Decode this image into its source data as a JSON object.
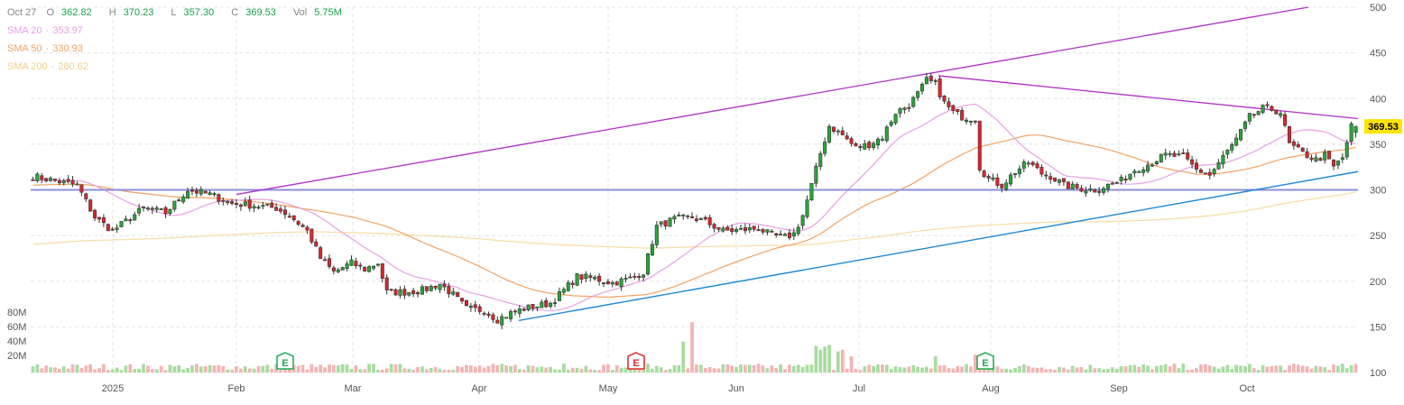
{
  "legend": {
    "date": "Oct 27",
    "open_label": "O",
    "open": "362.82",
    "high_label": "H",
    "high": "370.23",
    "low_label": "L",
    "low": "357.30",
    "close_label": "C",
    "close": "369.53",
    "volume_label": "Vol",
    "volume": "5.75M",
    "sma20_label": "SMA 20",
    "sma20": "353.97",
    "sma50_label": "SMA 50",
    "sma50": "330.93",
    "sma200_label": "SMA 200",
    "sma200": "280.62"
  },
  "colors": {
    "up": "#27a737",
    "down": "#d9272e",
    "up_volume": "#a8dca0",
    "down_volume": "#f4b4b4",
    "sma20": "#e9a0e3",
    "sma50": "#f4a261",
    "sma200": "#f8dca4",
    "trend_purple": "#b030c8",
    "trend_blue": "#1e88d6",
    "horizontal_line": "#8c8fd8",
    "price_tag_bg": "#ffe400",
    "earnings_green": "#1aa84b",
    "earnings_red": "#d9272e",
    "grid": "#e4e4e4"
  },
  "chart_data": {
    "type": "candlestick",
    "ylim": [
      100,
      500
    ],
    "y_ticks": [
      "500",
      "450",
      "400",
      "350",
      "300",
      "250",
      "200",
      "150",
      "100"
    ],
    "volume_ticks": [
      "80M",
      "60M",
      "40M",
      "20M"
    ],
    "x_ticks": [
      "2025",
      "Feb",
      "Mar",
      "Apr",
      "May",
      "Jun",
      "Jul",
      "Aug",
      "Sep",
      "Oct"
    ],
    "last_price": "369.53",
    "earnings_markers": [
      {
        "label": "E",
        "color": "green"
      },
      {
        "label": "E",
        "color": "red"
      },
      {
        "label": "E",
        "color": "green"
      }
    ],
    "horizontal_level": 300,
    "series": [
      {
        "name": "SMA 20",
        "last": 353.97
      },
      {
        "name": "SMA 50",
        "last": 330.93
      },
      {
        "name": "SMA 200",
        "last": 280.62
      }
    ],
    "anchors": [
      [
        0,
        315
      ],
      [
        10,
        305
      ],
      [
        14,
        270
      ],
      [
        18,
        255
      ],
      [
        25,
        280
      ],
      [
        30,
        275
      ],
      [
        35,
        300
      ],
      [
        40,
        295
      ],
      [
        45,
        285
      ],
      [
        50,
        283
      ],
      [
        55,
        280
      ],
      [
        58,
        272
      ],
      [
        62,
        255
      ],
      [
        65,
        225
      ],
      [
        68,
        210
      ],
      [
        72,
        220
      ],
      [
        75,
        213
      ],
      [
        78,
        220
      ],
      [
        80,
        188
      ],
      [
        84,
        188
      ],
      [
        88,
        190
      ],
      [
        92,
        197
      ],
      [
        95,
        185
      ],
      [
        98,
        170
      ],
      [
        102,
        168
      ],
      [
        105,
        158
      ],
      [
        108,
        165
      ],
      [
        111,
        170
      ],
      [
        114,
        173
      ],
      [
        117,
        176
      ],
      [
        120,
        190
      ],
      [
        123,
        205
      ],
      [
        127,
        203
      ],
      [
        131,
        198
      ],
      [
        135,
        203
      ],
      [
        138,
        210
      ],
      [
        141,
        260
      ],
      [
        145,
        268
      ],
      [
        149,
        270
      ],
      [
        152,
        265
      ],
      [
        156,
        255
      ],
      [
        160,
        256
      ],
      [
        164,
        258
      ],
      [
        167,
        250
      ],
      [
        170,
        248
      ],
      [
        172,
        252
      ],
      [
        174,
        272
      ],
      [
        176,
        305
      ],
      [
        178,
        340
      ],
      [
        180,
        370
      ],
      [
        183,
        360
      ],
      [
        186,
        346
      ],
      [
        189,
        350
      ],
      [
        192,
        358
      ],
      [
        195,
        385
      ],
      [
        198,
        393
      ],
      [
        200,
        405
      ],
      [
        202,
        420
      ],
      [
        204,
        416
      ],
      [
        206,
        395
      ],
      [
        208,
        385
      ],
      [
        210,
        380
      ],
      [
        213,
        378
      ],
      [
        214,
        325
      ],
      [
        216,
        312
      ],
      [
        219,
        305
      ],
      [
        222,
        320
      ],
      [
        225,
        330
      ],
      [
        228,
        318
      ],
      [
        230,
        315
      ],
      [
        233,
        305
      ],
      [
        236,
        302
      ],
      [
        240,
        300
      ],
      [
        243,
        305
      ],
      [
        246,
        310
      ],
      [
        249,
        322
      ],
      [
        252,
        328
      ],
      [
        256,
        338
      ],
      [
        260,
        336
      ],
      [
        263,
        322
      ],
      [
        266,
        316
      ],
      [
        269,
        336
      ],
      [
        272,
        355
      ],
      [
        275,
        380
      ],
      [
        278,
        389
      ],
      [
        280,
        388
      ],
      [
        282,
        385
      ],
      [
        284,
        350
      ],
      [
        287,
        340
      ],
      [
        290,
        333
      ],
      [
        292,
        338
      ],
      [
        294,
        325
      ],
      [
        296,
        335
      ],
      [
        298,
        369.53
      ]
    ],
    "volume_big": [
      [
        120,
        11
      ],
      [
        136,
        12
      ],
      [
        147,
        38
      ],
      [
        149,
        62
      ],
      [
        177,
        33
      ],
      [
        178,
        28
      ],
      [
        179,
        32
      ],
      [
        180,
        34
      ],
      [
        182,
        26
      ],
      [
        183,
        28
      ],
      [
        185,
        20
      ],
      [
        204,
        20
      ],
      [
        213,
        22
      ]
    ]
  }
}
